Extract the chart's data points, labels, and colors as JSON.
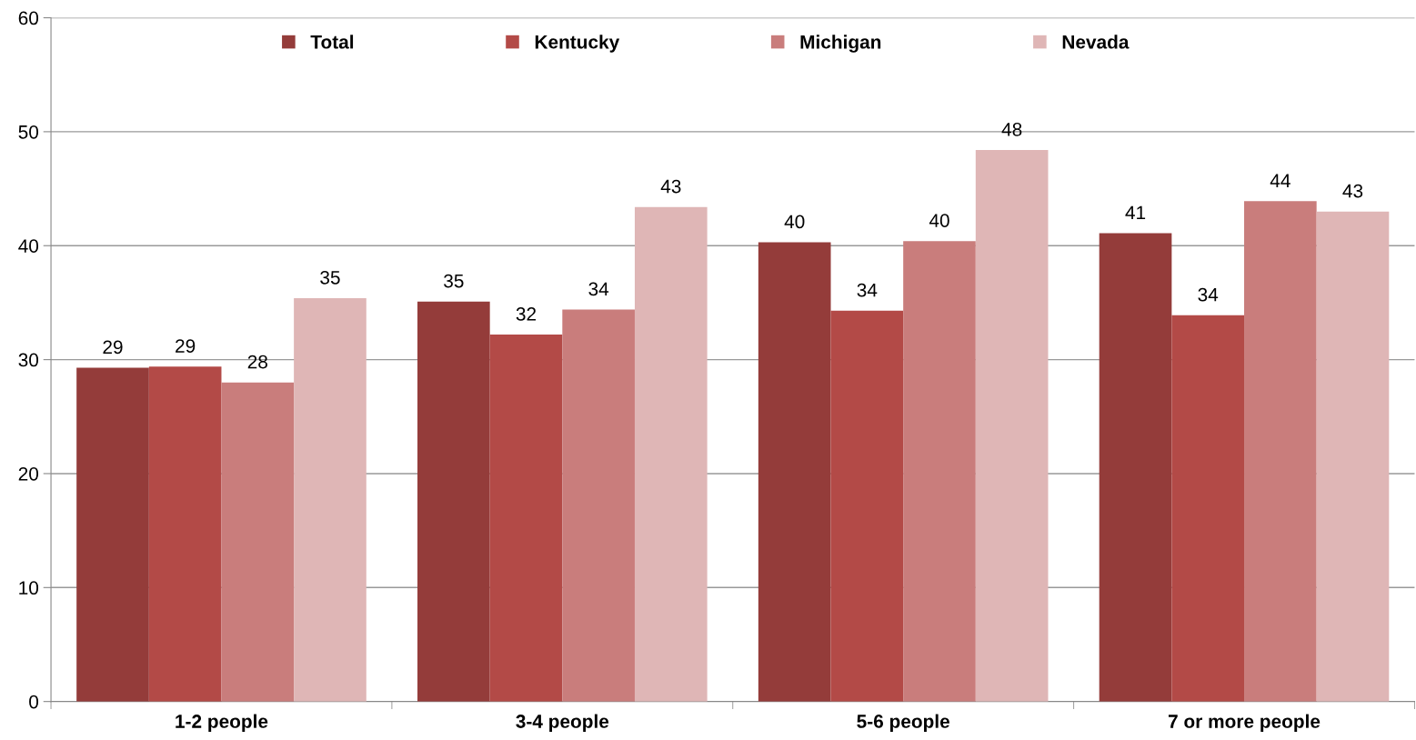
{
  "chart_data": {
    "type": "bar",
    "categories": [
      "1-2 people",
      "3-4 people",
      "5-6 people",
      "7 or more people"
    ],
    "series": [
      {
        "name": "Total",
        "color": "#943c3a",
        "values": [
          29.3,
          35.1,
          40.3,
          41.1
        ],
        "value_labels": [
          "29",
          "35",
          "40",
          "41"
        ]
      },
      {
        "name": "Kentucky",
        "color": "#b34a47",
        "values": [
          29.4,
          32.2,
          34.3,
          33.9
        ],
        "value_labels": [
          "29",
          "32",
          "34",
          "34"
        ]
      },
      {
        "name": "Michigan",
        "color": "#c97d7c",
        "values": [
          28.0,
          34.4,
          40.4,
          43.9
        ],
        "value_labels": [
          "28",
          "34",
          "40",
          "44"
        ]
      },
      {
        "name": "Nevada",
        "color": "#dfb6b6",
        "values": [
          35.4,
          43.4,
          48.4,
          43.0
        ],
        "value_labels": [
          "35",
          "43",
          "48",
          "43"
        ]
      }
    ],
    "ylim": [
      0,
      60
    ],
    "yticks": [
      0,
      10,
      20,
      30,
      40,
      50,
      60
    ],
    "grid": "y",
    "legend": "top"
  }
}
